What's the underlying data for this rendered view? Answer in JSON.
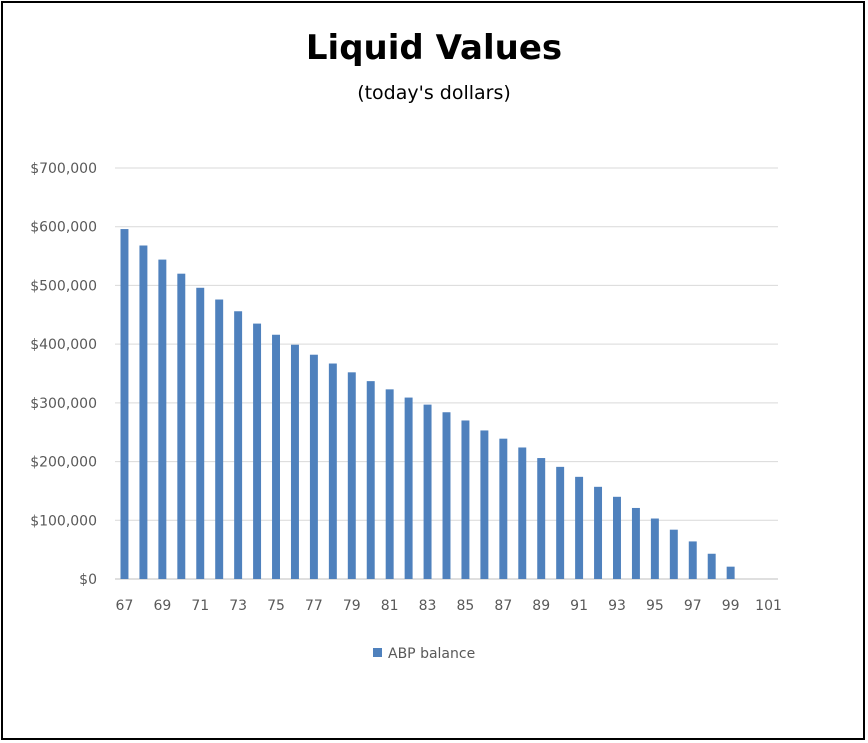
{
  "chart_data": {
    "type": "bar",
    "title": "Liquid Values",
    "subtitle": "(today's dollars)",
    "xlabel": "",
    "ylabel": "",
    "ylim": [
      0,
      700000
    ],
    "y_ticks": [
      0,
      100000,
      200000,
      300000,
      400000,
      500000,
      600000,
      700000
    ],
    "y_tick_labels": [
      "$0",
      "$100,000",
      "$200,000",
      "$300,000",
      "$400,000",
      "$500,000",
      "$600,000",
      "$700,000"
    ],
    "categories": [
      67,
      68,
      69,
      70,
      71,
      72,
      73,
      74,
      75,
      76,
      77,
      78,
      79,
      80,
      81,
      82,
      83,
      84,
      85,
      86,
      87,
      88,
      89,
      90,
      91,
      92,
      93,
      94,
      95,
      96,
      97,
      98,
      99,
      100,
      101
    ],
    "x_tick_labels": [
      "67",
      "69",
      "71",
      "73",
      "75",
      "77",
      "79",
      "81",
      "83",
      "85",
      "87",
      "89",
      "91",
      "93",
      "95",
      "97",
      "99",
      "101"
    ],
    "series": [
      {
        "name": "ABP balance",
        "color": "#4F81BD",
        "values": [
          596000,
          568000,
          544000,
          520000,
          496000,
          476000,
          456000,
          435000,
          416000,
          399000,
          382000,
          367000,
          352000,
          337000,
          323000,
          309000,
          297000,
          284000,
          270000,
          253000,
          239000,
          224000,
          206000,
          191000,
          174000,
          157000,
          140000,
          121000,
          103000,
          84000,
          64000,
          43000,
          21000,
          0,
          0
        ]
      }
    ],
    "grid": true,
    "legend_position": "bottom"
  }
}
